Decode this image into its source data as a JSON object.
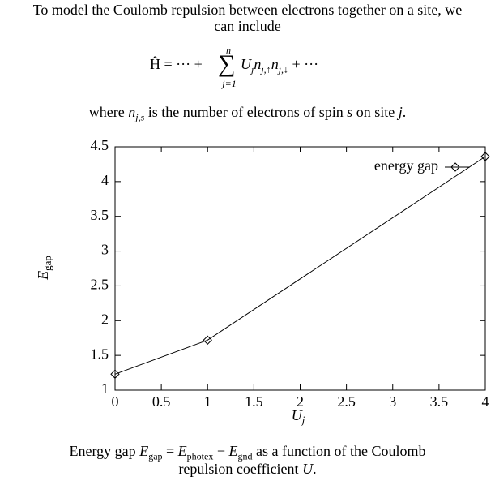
{
  "intro": [
    "To model the Coulomb repulsion between electrons together on a site, we",
    "can include"
  ],
  "equation": {
    "lhs": "Ĥ = ··· +",
    "sum": "∑",
    "upper": "n",
    "lower": "j=1",
    "u": "U",
    "u_sub": "j",
    "n1": "n",
    "n1_sub": "j,↑",
    "n2": "n",
    "n2_sub": "j,↓",
    "rhs": "+ ···"
  },
  "where_line": [
    "where",
    "n",
    "j,s",
    "is the number of electrons of spin",
    "s",
    "on site",
    "j",
    "."
  ],
  "chart_data": {
    "type": "line",
    "xlabel": {
      "text": "U",
      "subscript": "j"
    },
    "ylabel": {
      "text": "E",
      "subscript": "gap"
    },
    "x": [
      0,
      1,
      4
    ],
    "series": [
      {
        "name": "energy gap",
        "color": "#000000",
        "values": [
          1.23,
          1.72,
          4.36
        ]
      }
    ],
    "xlim": [
      0,
      4
    ],
    "xticks": [
      0,
      0.5,
      1,
      1.5,
      2,
      2.5,
      3,
      3.5,
      4
    ],
    "ylim": [
      1,
      4.5
    ],
    "yticks": [
      1,
      1.5,
      2,
      2.5,
      3,
      3.5,
      4,
      4.5
    ],
    "legend": "top-right",
    "grid": false
  },
  "caption": [
    "Energy gap",
    "E",
    "gap",
    "=",
    "E",
    "photex",
    "−",
    "E",
    "gnd",
    "as a function of the Coulomb",
    "repulsion coefficient",
    "U",
    "."
  ]
}
